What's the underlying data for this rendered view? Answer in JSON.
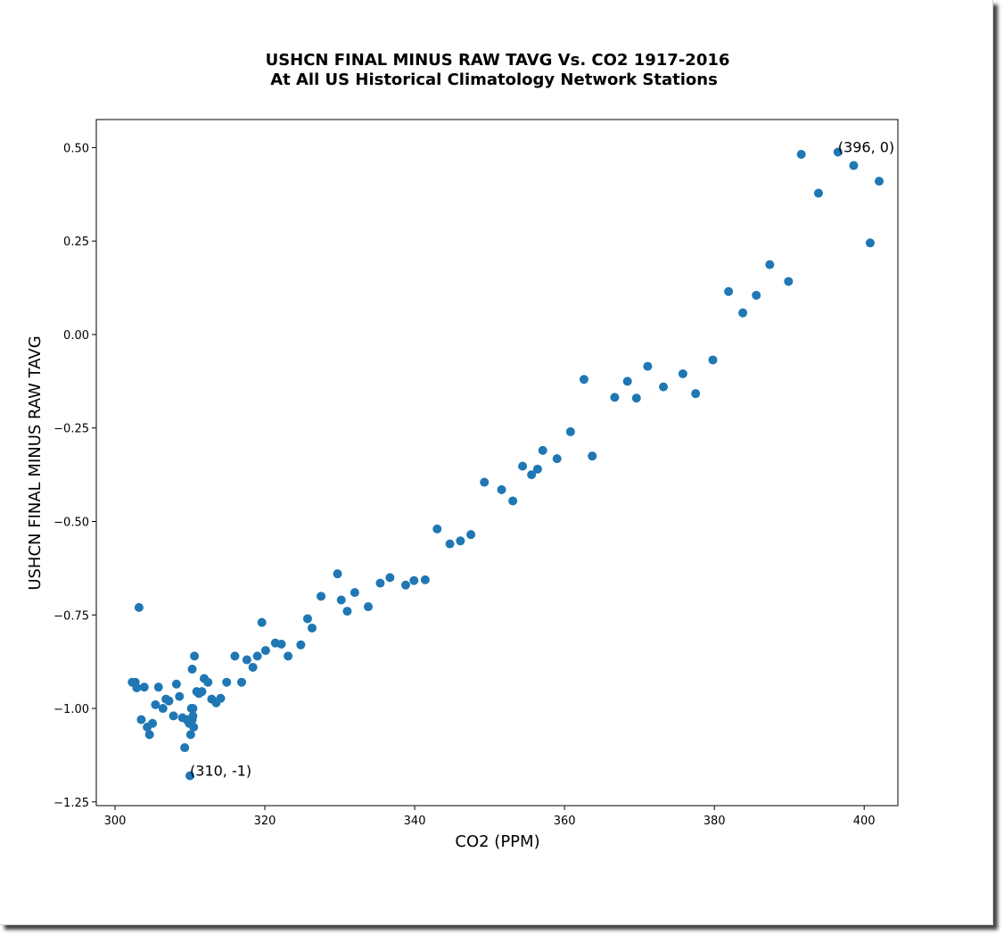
{
  "chart_data": {
    "type": "scatter",
    "title": "USHCN FINAL MINUS RAW TAVG Vs. CO2 1917-2016",
    "subtitle": "At All US Historical Climatology Network Stations",
    "xlabel": "CO2 (PPM)",
    "ylabel": "USHCN FINAL MINUS RAW TAVG",
    "xlim": [
      297.5,
      404.5
    ],
    "ylim": [
      -1.26,
      0.575
    ],
    "xticks": [
      300,
      320,
      340,
      360,
      380,
      400
    ],
    "yticks": [
      0.5,
      0.25,
      0.0,
      -0.25,
      -0.5,
      -0.75,
      -1.0,
      -1.25
    ],
    "xtick_labels": [
      "300",
      "320",
      "340",
      "360",
      "380",
      "400"
    ],
    "ytick_labels": [
      "0.50",
      "0.25",
      "0.00",
      "−0.25",
      "−0.50",
      "−0.75",
      "−1.00",
      "−1.25"
    ],
    "grid": false,
    "marker_color": "#1f77b4",
    "points": [
      [
        302.3,
        -0.93
      ],
      [
        302.7,
        -0.93
      ],
      [
        302.9,
        -0.945
      ],
      [
        303.2,
        -0.73
      ],
      [
        303.5,
        -1.03
      ],
      [
        303.9,
        -0.943
      ],
      [
        304.3,
        -1.05
      ],
      [
        304.6,
        -1.07
      ],
      [
        305.0,
        -1.04
      ],
      [
        305.4,
        -0.99
      ],
      [
        305.8,
        -0.943
      ],
      [
        306.4,
        -1.0
      ],
      [
        306.8,
        -0.975
      ],
      [
        307.2,
        -0.98
      ],
      [
        307.8,
        -1.02
      ],
      [
        308.2,
        -0.935
      ],
      [
        308.6,
        -0.968
      ],
      [
        309.0,
        -1.025
      ],
      [
        309.3,
        -1.105
      ],
      [
        309.6,
        -1.03
      ],
      [
        309.9,
        -1.04
      ],
      [
        310.0,
        -1.18
      ],
      [
        310.1,
        -1.07
      ],
      [
        310.2,
        -1.0
      ],
      [
        310.3,
        -0.895
      ],
      [
        310.3,
        -1.03
      ],
      [
        310.4,
        -1.0
      ],
      [
        310.4,
        -1.02
      ],
      [
        310.5,
        -1.05
      ],
      [
        310.6,
        -0.86
      ],
      [
        310.9,
        -0.955
      ],
      [
        311.2,
        -0.96
      ],
      [
        311.6,
        -0.955
      ],
      [
        311.9,
        -0.92
      ],
      [
        312.4,
        -0.93
      ],
      [
        312.9,
        -0.975
      ],
      [
        313.5,
        -0.985
      ],
      [
        314.1,
        -0.973
      ],
      [
        314.9,
        -0.93
      ],
      [
        316.0,
        -0.86
      ],
      [
        316.9,
        -0.93
      ],
      [
        317.6,
        -0.87
      ],
      [
        318.4,
        -0.89
      ],
      [
        319.0,
        -0.86
      ],
      [
        319.6,
        -0.77
      ],
      [
        320.1,
        -0.845
      ],
      [
        321.4,
        -0.825
      ],
      [
        322.2,
        -0.828
      ],
      [
        323.1,
        -0.86
      ],
      [
        324.8,
        -0.83
      ],
      [
        325.7,
        -0.76
      ],
      [
        326.3,
        -0.785
      ],
      [
        327.5,
        -0.7
      ],
      [
        329.7,
        -0.64
      ],
      [
        330.2,
        -0.71
      ],
      [
        331.0,
        -0.74
      ],
      [
        332.0,
        -0.69
      ],
      [
        333.8,
        -0.728
      ],
      [
        335.4,
        -0.665
      ],
      [
        336.7,
        -0.65
      ],
      [
        338.8,
        -0.67
      ],
      [
        339.9,
        -0.658
      ],
      [
        341.4,
        -0.656
      ],
      [
        343.0,
        -0.52
      ],
      [
        344.7,
        -0.56
      ],
      [
        346.1,
        -0.552
      ],
      [
        347.5,
        -0.535
      ],
      [
        349.3,
        -0.395
      ],
      [
        351.6,
        -0.415
      ],
      [
        353.1,
        -0.445
      ],
      [
        354.4,
        -0.352
      ],
      [
        355.6,
        -0.375
      ],
      [
        356.4,
        -0.36
      ],
      [
        357.1,
        -0.31
      ],
      [
        359.0,
        -0.332
      ],
      [
        360.8,
        -0.26
      ],
      [
        362.6,
        -0.12
      ],
      [
        363.7,
        -0.325
      ],
      [
        366.7,
        -0.168
      ],
      [
        368.4,
        -0.125
      ],
      [
        369.6,
        -0.17
      ],
      [
        371.1,
        -0.085
      ],
      [
        373.2,
        -0.14
      ],
      [
        375.8,
        -0.105
      ],
      [
        377.5,
        -0.158
      ],
      [
        379.8,
        -0.068
      ],
      [
        381.9,
        0.115
      ],
      [
        383.8,
        0.058
      ],
      [
        385.6,
        0.105
      ],
      [
        387.4,
        0.187
      ],
      [
        389.9,
        0.142
      ],
      [
        391.6,
        0.482
      ],
      [
        393.9,
        0.378
      ],
      [
        396.5,
        0.488
      ],
      [
        398.6,
        0.452
      ],
      [
        400.8,
        0.245
      ],
      [
        402.0,
        0.41
      ]
    ],
    "annotations": [
      {
        "text": "(396, 0)",
        "x": 396.5,
        "y": 0.488
      },
      {
        "text": "(310, -1)",
        "x": 310.0,
        "y": -1.18
      }
    ]
  }
}
